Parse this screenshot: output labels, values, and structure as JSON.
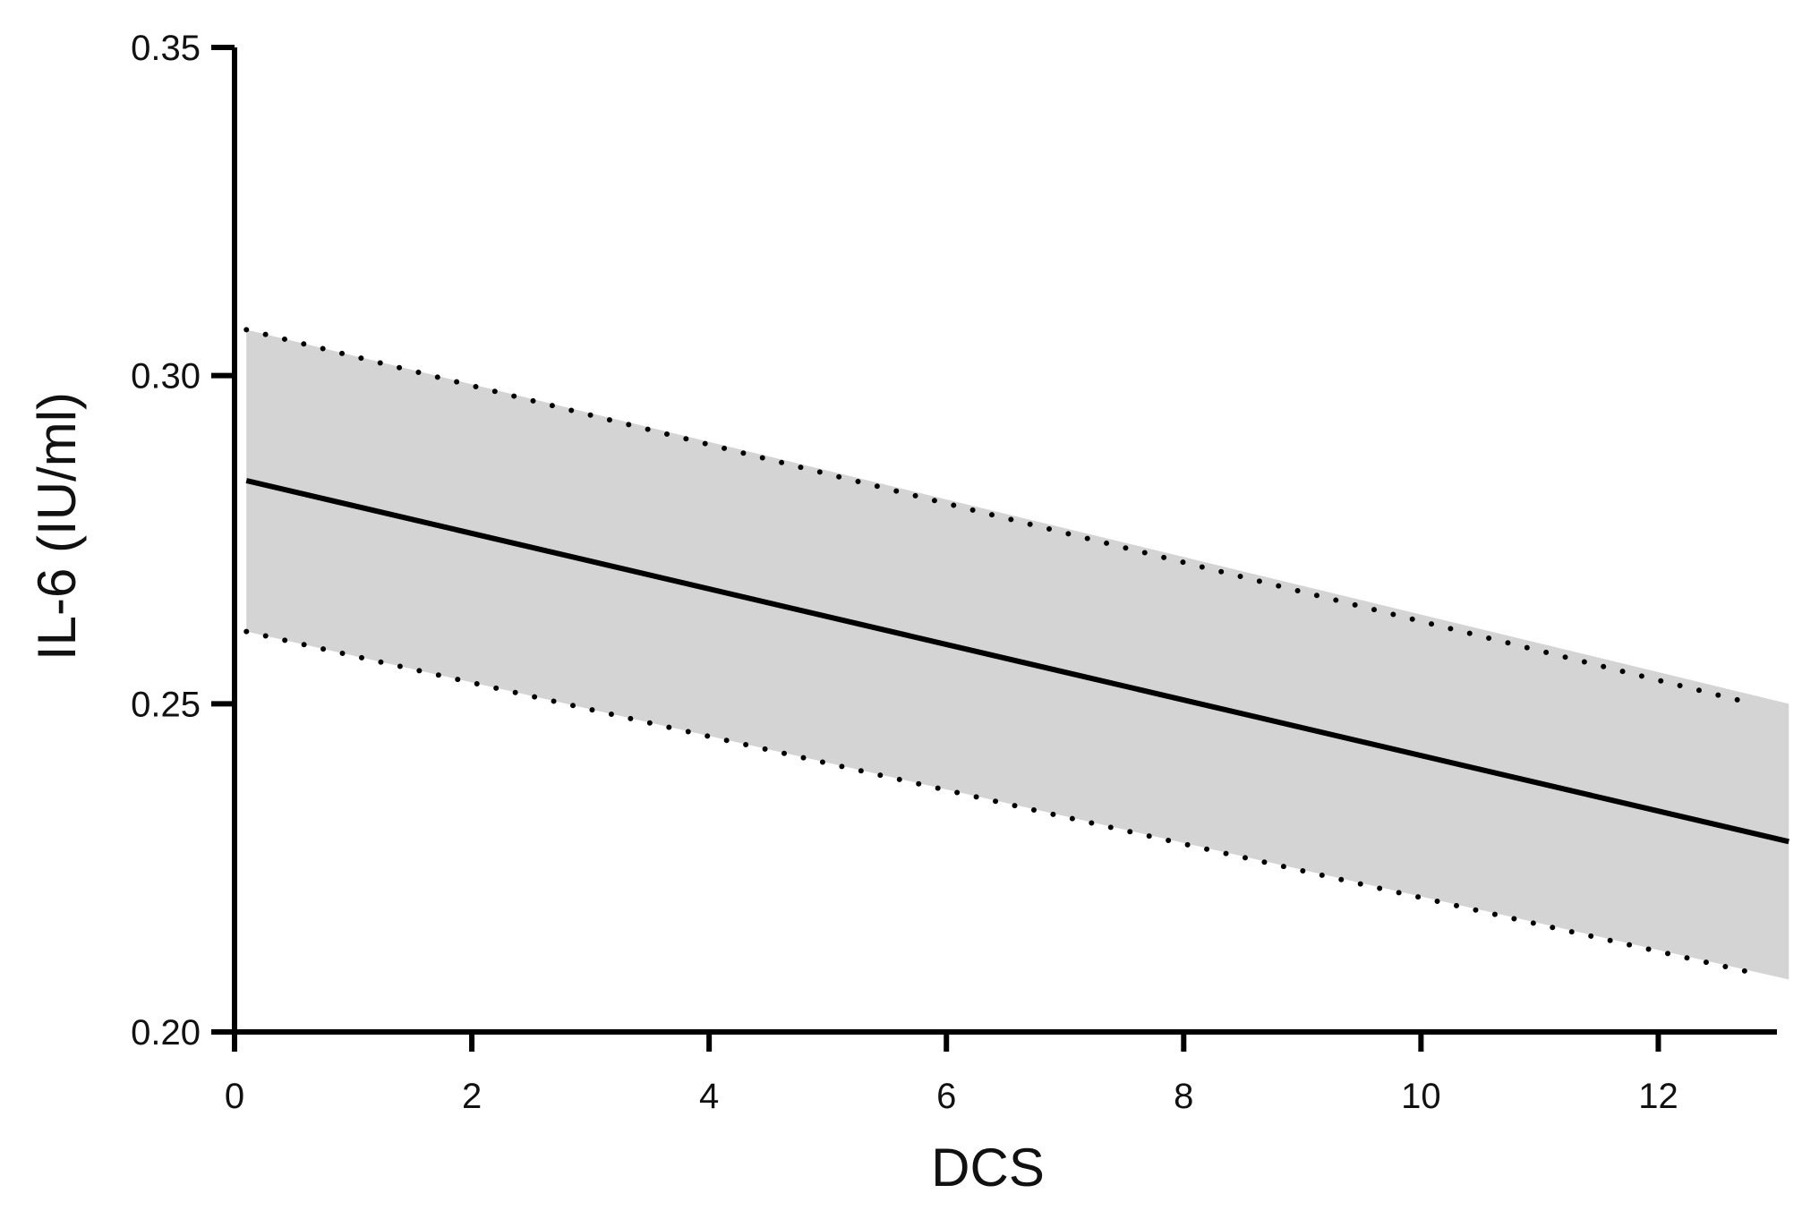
{
  "chart_data": {
    "type": "line",
    "xlabel": "DCS",
    "ylabel": "IL-6 (IU/ml)",
    "xlim": [
      0,
      13
    ],
    "ylim": [
      0.2,
      0.35
    ],
    "x_ticks": [
      0,
      2,
      4,
      6,
      8,
      10,
      12
    ],
    "x_tick_labels": [
      "0",
      "2",
      "4",
      "6",
      "8",
      "10",
      "12"
    ],
    "y_ticks": [
      0.2,
      0.25,
      0.3,
      0.35
    ],
    "y_tick_labels": [
      "0.20",
      "0.25",
      "0.30",
      "0.35"
    ],
    "grid": false,
    "legend": "none",
    "series": [
      {
        "role": "fit",
        "style": "solid",
        "x": [
          0.1,
          13.1
        ],
        "y": [
          0.284,
          0.229
        ]
      },
      {
        "role": "upper-ci",
        "style": "dotted",
        "x": [
          0.1,
          12.8
        ],
        "y": [
          0.307,
          0.25
        ]
      },
      {
        "role": "lower-ci",
        "style": "dotted",
        "x": [
          0.1,
          12.8
        ],
        "y": [
          0.261,
          0.209
        ]
      }
    ],
    "band": {
      "x": [
        0.1,
        13.1
      ],
      "upper": [
        0.307,
        0.25
      ],
      "lower": [
        0.261,
        0.208
      ]
    },
    "colors": {
      "line": "#000000",
      "band": "#d4d4d4",
      "axis": "#000000"
    }
  }
}
